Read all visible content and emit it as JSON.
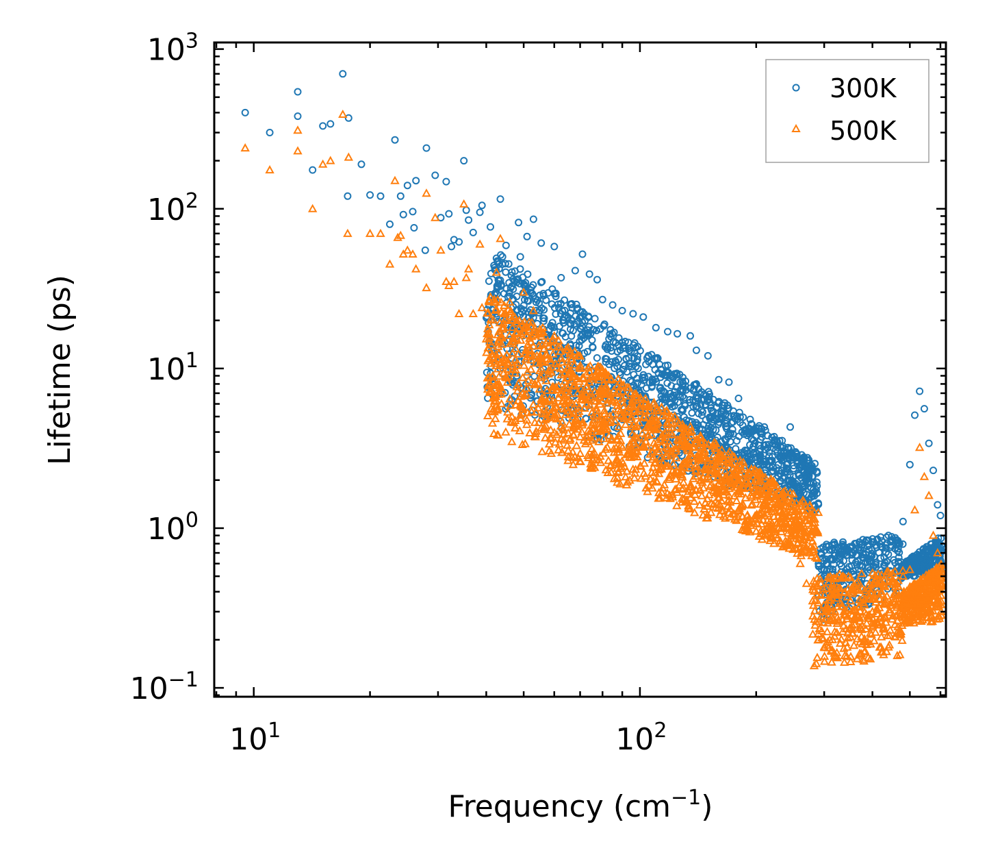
{
  "chart_data": {
    "type": "scatter",
    "title": "",
    "xlabel": "Frequency (cm",
    "xlabel_sup": "−1",
    "xlabel_close": ")",
    "ylabel": "Lifetime (ps)",
    "xscale": "log",
    "yscale": "log",
    "xlim": [
      7.9,
      620
    ],
    "ylim": [
      0.088,
      1100
    ],
    "x_ticks": [
      {
        "base": "10",
        "exp": "1",
        "value": 10
      },
      {
        "base": "10",
        "exp": "2",
        "value": 100
      }
    ],
    "y_ticks": [
      {
        "base": "10",
        "exp": "−1",
        "value": 0.1
      },
      {
        "base": "10",
        "exp": "0",
        "value": 1
      },
      {
        "base": "10",
        "exp": "1",
        "value": 10
      },
      {
        "base": "10",
        "exp": "2",
        "value": 100
      },
      {
        "base": "10",
        "exp": "3",
        "value": 1000
      }
    ],
    "legend_position": "top-right",
    "series": [
      {
        "name": "300K",
        "marker": "circle",
        "color": "#1f77b4",
        "points": [
          [
            9.5,
            400
          ],
          [
            11,
            300
          ],
          [
            13,
            540
          ],
          [
            13,
            380
          ],
          [
            14.2,
            175
          ],
          [
            15.1,
            330
          ],
          [
            15.8,
            340
          ],
          [
            17,
            700
          ],
          [
            17.6,
            370
          ],
          [
            17.5,
            120
          ],
          [
            19,
            190
          ],
          [
            20,
            122
          ],
          [
            21.3,
            120
          ],
          [
            22.5,
            80
          ],
          [
            23.2,
            270
          ],
          [
            24,
            120
          ],
          [
            24.4,
            92
          ],
          [
            25,
            140
          ],
          [
            25.8,
            96
          ],
          [
            26.3,
            150
          ],
          [
            26,
            76
          ],
          [
            27.8,
            55
          ],
          [
            28,
            240
          ],
          [
            29.5,
            162
          ],
          [
            30.5,
            88
          ],
          [
            31.5,
            148
          ],
          [
            32,
            93
          ],
          [
            32.5,
            58
          ],
          [
            33,
            64
          ],
          [
            34,
            62
          ],
          [
            35,
            200
          ],
          [
            35.5,
            98
          ],
          [
            36,
            85
          ],
          [
            37,
            71
          ],
          [
            38.5,
            95
          ],
          [
            39,
            105
          ],
          [
            41,
            77
          ],
          [
            42.5,
            49
          ],
          [
            43.5,
            115
          ],
          [
            44,
            45
          ],
          [
            45,
            59
          ],
          [
            48.5,
            82
          ],
          [
            49,
            50
          ],
          [
            51,
            67
          ],
          [
            53,
            86
          ],
          [
            55.5,
            61
          ],
          [
            60,
            58
          ],
          [
            62.5,
            37
          ],
          [
            68,
            41
          ],
          [
            71,
            52
          ],
          [
            74,
            39
          ],
          [
            77.5,
            36
          ],
          [
            80,
            27
          ],
          [
            85,
            25
          ],
          [
            90,
            23
          ],
          [
            96,
            22
          ],
          [
            102,
            21
          ],
          [
            110,
            18
          ],
          [
            118,
            17
          ],
          [
            125,
            16.5
          ],
          [
            135,
            16
          ],
          [
            140,
            13
          ],
          [
            150,
            12
          ],
          [
            160,
            8.5
          ],
          [
            170,
            8.2
          ],
          [
            180,
            6.5
          ],
          [
            195,
            3.6
          ],
          [
            210,
            4.3
          ],
          [
            225,
            3.1
          ],
          [
            245,
            4.3
          ],
          [
            255,
            2.9
          ],
          [
            270,
            2.1
          ],
          [
            280,
            1.6
          ],
          [
            290,
            0.6
          ],
          [
            300,
            0.5
          ],
          [
            310,
            0.55
          ],
          [
            320,
            0.4
          ],
          [
            330,
            0.6
          ],
          [
            340,
            0.7
          ],
          [
            360,
            0.8
          ],
          [
            380,
            0.75
          ],
          [
            400,
            0.82
          ],
          [
            420,
            0.88
          ],
          [
            440,
            0.9
          ],
          [
            460,
            0.8
          ],
          [
            480,
            1.1
          ],
          [
            500,
            2.5
          ],
          [
            515,
            5.1
          ],
          [
            530,
            7.2
          ],
          [
            545,
            5.6
          ],
          [
            560,
            3.4
          ],
          [
            575,
            2.3
          ],
          [
            590,
            1.4
          ],
          [
            600,
            1.2
          ]
        ]
      },
      {
        "name": "500K",
        "marker": "triangle",
        "color": "#ff7f0e",
        "points": [
          [
            9.5,
            240
          ],
          [
            11,
            175
          ],
          [
            13,
            310
          ],
          [
            13,
            230
          ],
          [
            14.2,
            100
          ],
          [
            15.1,
            190
          ],
          [
            15.8,
            200
          ],
          [
            17,
            390
          ],
          [
            17.6,
            210
          ],
          [
            17.5,
            70
          ],
          [
            20,
            70
          ],
          [
            21.3,
            70
          ],
          [
            22.5,
            45
          ],
          [
            23.2,
            150
          ],
          [
            23.6,
            66
          ],
          [
            24,
            68
          ],
          [
            24.4,
            52
          ],
          [
            25,
            55
          ],
          [
            25.8,
            52
          ],
          [
            26.3,
            42
          ],
          [
            28,
            125
          ],
          [
            28,
            32
          ],
          [
            29.5,
            88
          ],
          [
            30.5,
            55
          ],
          [
            31.5,
            35
          ],
          [
            32,
            33
          ],
          [
            33,
            35
          ],
          [
            34,
            22
          ],
          [
            35,
            107
          ],
          [
            35.5,
            37
          ],
          [
            36,
            42
          ],
          [
            37,
            22
          ],
          [
            38.5,
            60
          ],
          [
            39,
            24
          ],
          [
            41,
            28
          ],
          [
            42.5,
            40
          ],
          [
            43.5,
            65
          ],
          [
            44,
            18
          ],
          [
            46,
            26
          ],
          [
            48,
            20
          ],
          [
            50,
            30
          ],
          [
            53,
            23
          ],
          [
            56,
            18
          ],
          [
            60,
            16
          ],
          [
            65,
            13
          ],
          [
            70,
            10
          ],
          [
            75,
            8.8
          ],
          [
            80,
            7.2
          ],
          [
            90,
            6.5
          ],
          [
            100,
            5.6
          ],
          [
            110,
            4.2
          ],
          [
            120,
            3.3
          ],
          [
            130,
            2.4
          ],
          [
            140,
            2.5
          ],
          [
            150,
            2.1
          ],
          [
            160,
            1.9
          ],
          [
            170,
            1.6
          ],
          [
            180,
            1.3
          ],
          [
            195,
            1.1
          ],
          [
            210,
            0.9
          ],
          [
            225,
            0.95
          ],
          [
            245,
            0.8
          ],
          [
            260,
            0.6
          ],
          [
            270,
            0.45
          ],
          [
            280,
            0.35
          ],
          [
            290,
            0.2
          ],
          [
            300,
            0.18
          ],
          [
            310,
            0.2
          ],
          [
            320,
            0.16
          ],
          [
            330,
            0.19
          ],
          [
            345,
            0.28
          ],
          [
            360,
            0.25
          ],
          [
            380,
            0.34
          ],
          [
            395,
            0.22
          ],
          [
            400,
            0.3
          ],
          [
            420,
            0.28
          ],
          [
            440,
            0.18
          ],
          [
            460,
            0.33
          ],
          [
            480,
            0.5
          ],
          [
            500,
            0.55
          ],
          [
            515,
            1.3
          ],
          [
            530,
            3.2
          ],
          [
            545,
            2.1
          ],
          [
            560,
            1.6
          ],
          [
            575,
            0.9
          ],
          [
            590,
            0.7
          ],
          [
            600,
            0.45
          ]
        ]
      }
    ],
    "cloud_regions": [
      {
        "series": 0,
        "x_range": [
          40,
          290
        ],
        "y_start": [
          60,
          6
        ],
        "y_end": [
          2.5,
          1.2
        ],
        "spread": 0.55,
        "count": 1400
      },
      {
        "series": 0,
        "x_range": [
          290,
          480
        ],
        "y_start": [
          0.8,
          0.25
        ],
        "y_end": [
          0.9,
          0.4
        ],
        "spread": 0.35,
        "count": 320
      },
      {
        "series": 0,
        "x_range": [
          480,
          605
        ],
        "y_start": [
          0.6,
          0.5
        ],
        "y_end": [
          0.9,
          0.5
        ],
        "spread": 0.9,
        "count": 260
      },
      {
        "series": 1,
        "x_range": [
          40,
          290
        ],
        "y_start": [
          30,
          4
        ],
        "y_end": [
          1.3,
          0.6
        ],
        "spread": 0.6,
        "count": 1500
      },
      {
        "series": 1,
        "x_range": [
          280,
          480
        ],
        "y_start": [
          0.5,
          0.13
        ],
        "y_end": [
          0.55,
          0.15
        ],
        "spread": 0.5,
        "count": 360
      },
      {
        "series": 1,
        "x_range": [
          480,
          605
        ],
        "y_start": [
          0.4,
          0.25
        ],
        "y_end": [
          0.6,
          0.26
        ],
        "spread": 1.0,
        "count": 300
      }
    ]
  }
}
